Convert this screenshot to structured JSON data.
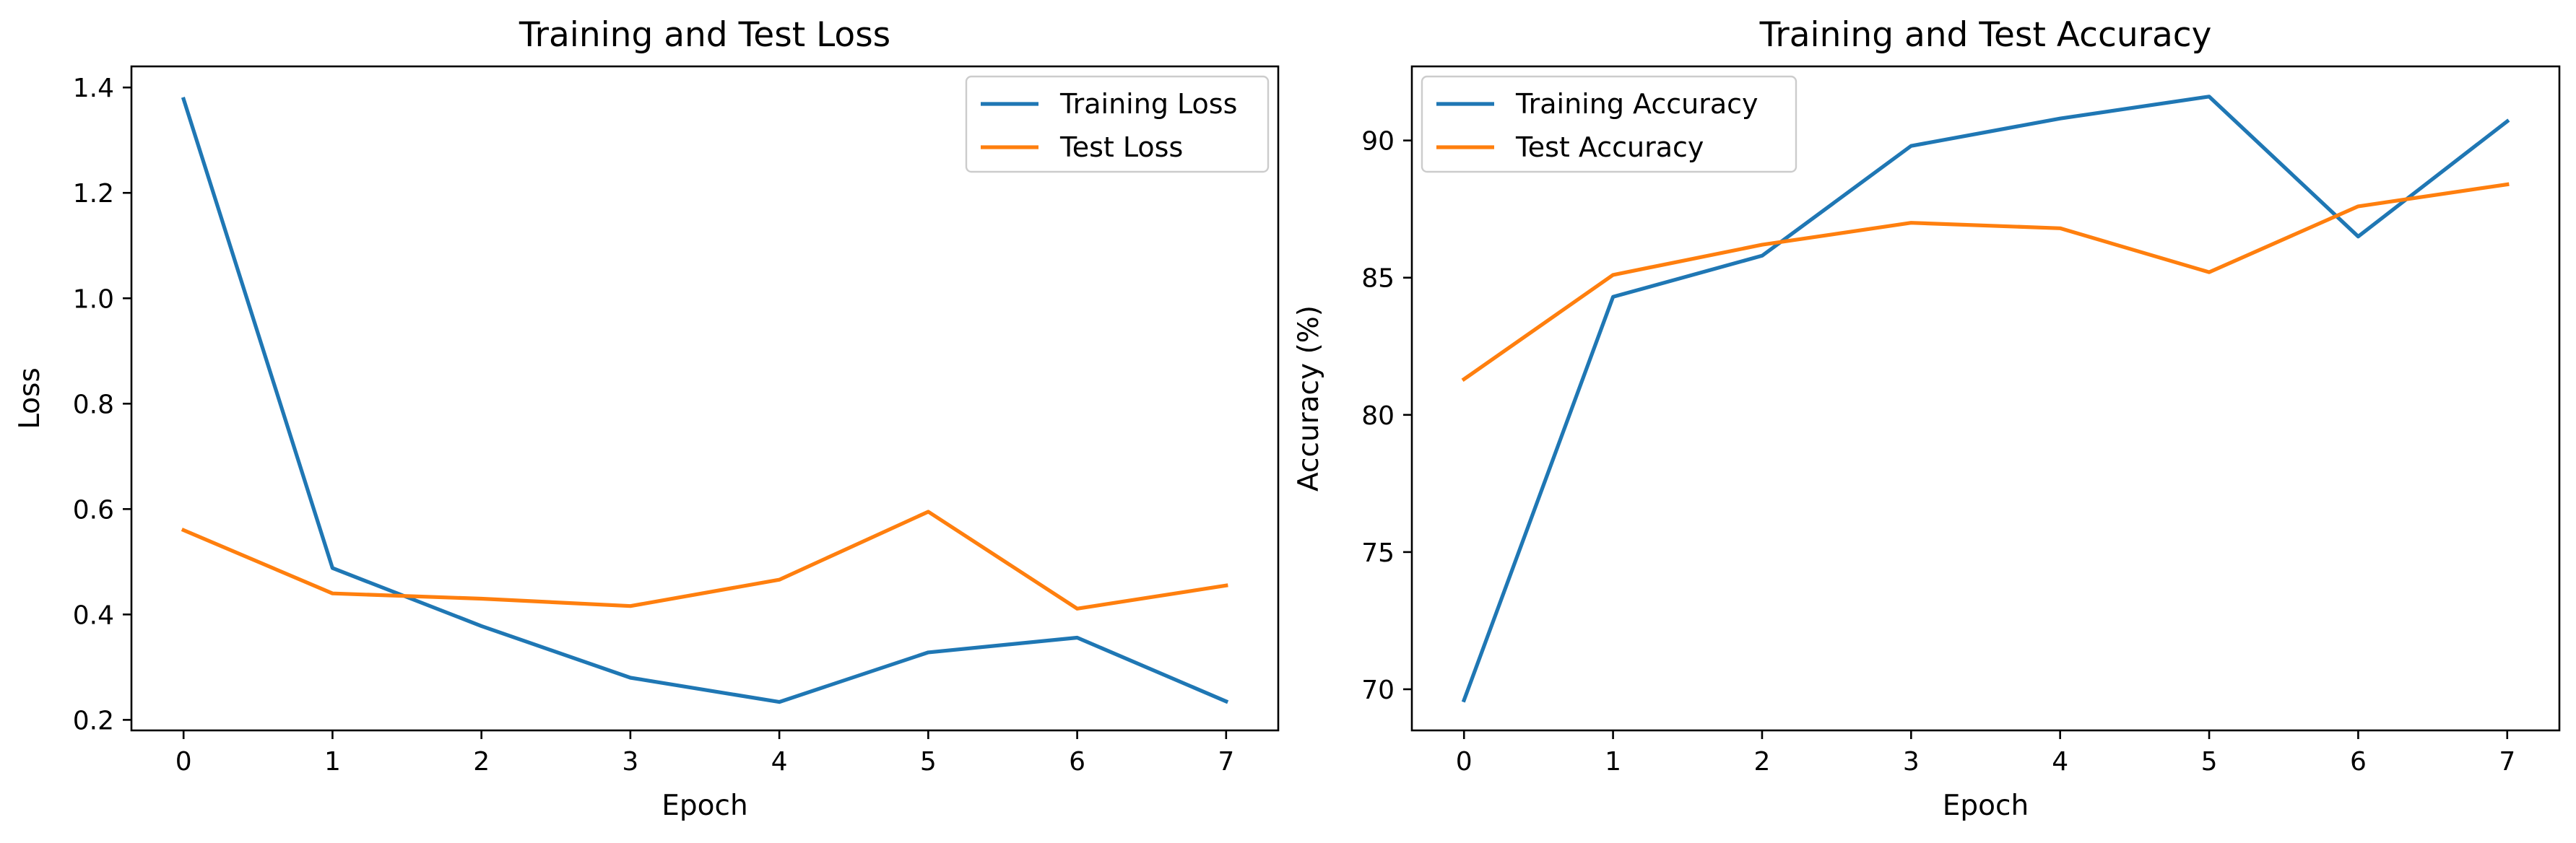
{
  "chart_data": [
    {
      "type": "line",
      "title": "Training and Test Loss",
      "xlabel": "Epoch",
      "ylabel": "Loss",
      "x": [
        0,
        1,
        2,
        3,
        4,
        5,
        6,
        7
      ],
      "xlim": [
        -0.35,
        7.35
      ],
      "ylim": [
        0.18,
        1.44
      ],
      "xticks": [
        0,
        1,
        2,
        3,
        4,
        5,
        6,
        7
      ],
      "xtick_labels": [
        "0",
        "1",
        "2",
        "3",
        "4",
        "5",
        "6",
        "7"
      ],
      "yticks": [
        0.2,
        0.4,
        0.6,
        0.8,
        1.0,
        1.2,
        1.4
      ],
      "ytick_labels": [
        "0.2",
        "0.4",
        "0.6",
        "0.8",
        "1.0",
        "1.2",
        "1.4"
      ],
      "grid": false,
      "legend_position": "top-right",
      "series": [
        {
          "name": "Training Loss",
          "color": "#1f77b4",
          "values": [
            1.378,
            0.488,
            0.378,
            0.28,
            0.234,
            0.328,
            0.356,
            0.235
          ]
        },
        {
          "name": "Test Loss",
          "color": "#ff7f0e",
          "values": [
            0.56,
            0.44,
            0.43,
            0.416,
            0.466,
            0.595,
            0.411,
            0.455
          ]
        }
      ]
    },
    {
      "type": "line",
      "title": "Training and Test Accuracy",
      "xlabel": "Epoch",
      "ylabel": "Accuracy (%)",
      "x": [
        0,
        1,
        2,
        3,
        4,
        5,
        6,
        7
      ],
      "xlim": [
        -0.35,
        7.35
      ],
      "ylim": [
        68.5,
        92.7
      ],
      "xticks": [
        0,
        1,
        2,
        3,
        4,
        5,
        6,
        7
      ],
      "xtick_labels": [
        "0",
        "1",
        "2",
        "3",
        "4",
        "5",
        "6",
        "7"
      ],
      "yticks": [
        70,
        75,
        80,
        85,
        90
      ],
      "ytick_labels": [
        "70",
        "75",
        "80",
        "85",
        "90"
      ],
      "grid": false,
      "legend_position": "top-left",
      "series": [
        {
          "name": "Training Accuracy",
          "color": "#1f77b4",
          "values": [
            69.6,
            84.3,
            85.8,
            89.8,
            90.8,
            91.6,
            86.5,
            90.7
          ]
        },
        {
          "name": "Test Accuracy",
          "color": "#ff7f0e",
          "values": [
            81.3,
            85.1,
            86.2,
            87.0,
            86.8,
            85.2,
            87.6,
            88.4
          ]
        }
      ]
    }
  ]
}
